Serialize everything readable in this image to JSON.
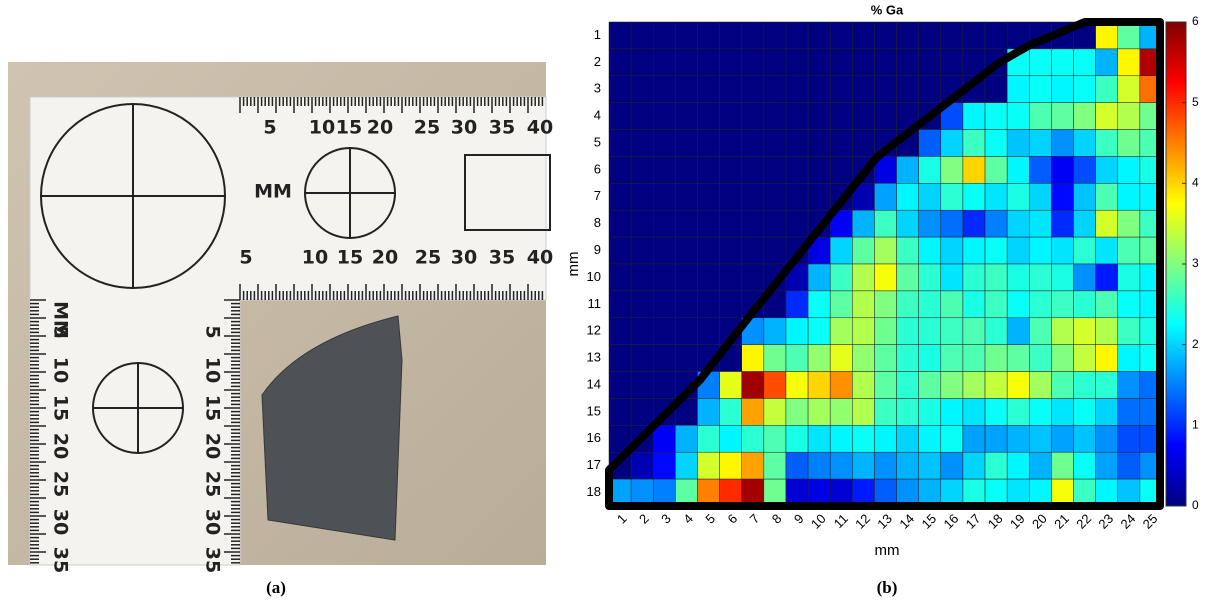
{
  "captions": [
    "(a)",
    "(b)"
  ],
  "photo": {
    "ruler_mark": "MM",
    "ruler_top_labels": [
      "5",
      "10",
      "15",
      "20",
      "25",
      "30",
      "35",
      "40"
    ],
    "ruler_left_labels": [
      "5",
      "10",
      "15",
      "20",
      "25",
      "30",
      "35"
    ]
  },
  "chart_data": {
    "type": "heatmap",
    "title": "% Ga",
    "x_label": "mm",
    "y_label": "mm",
    "x": [
      1,
      2,
      3,
      4,
      5,
      6,
      7,
      8,
      9,
      10,
      11,
      12,
      13,
      14,
      15,
      16,
      17,
      18,
      19,
      20,
      21,
      22,
      23,
      24,
      25
    ],
    "y": [
      1,
      2,
      3,
      4,
      5,
      6,
      7,
      8,
      9,
      10,
      11,
      12,
      13,
      14,
      15,
      16,
      17,
      18
    ],
    "colormap": "jet",
    "clim": [
      0,
      6
    ],
    "cticks": [
      0,
      1,
      2,
      3,
      4,
      5,
      6
    ],
    "values": [
      [
        0,
        0,
        0,
        0,
        0,
        0,
        0,
        0,
        0,
        0,
        0,
        0,
        0,
        0,
        0,
        0,
        0,
        0,
        0,
        0,
        0,
        0,
        3.8,
        2.8,
        1.8
      ],
      [
        0,
        0,
        0,
        0,
        0,
        0,
        0,
        0,
        0,
        0,
        0,
        0,
        0,
        0,
        0,
        0,
        0,
        0,
        2.3,
        2.3,
        2.3,
        2.3,
        1.8,
        3.8,
        5.7
      ],
      [
        0,
        0,
        0,
        0,
        0,
        0,
        0,
        0,
        0,
        0,
        0,
        0,
        0,
        0,
        0,
        0,
        0,
        0,
        2.2,
        2.3,
        2.2,
        2.3,
        2.6,
        3.5,
        4.6
      ],
      [
        0,
        0,
        0,
        0,
        0,
        0,
        0,
        0,
        0,
        0,
        0,
        0,
        0,
        0,
        0,
        1.2,
        2.2,
        2.3,
        2.3,
        2.7,
        2.8,
        3.0,
        3.5,
        3.3,
        2.9
      ],
      [
        0,
        0,
        0,
        0,
        0,
        0,
        0,
        0,
        0,
        0,
        0,
        0,
        0,
        0,
        1.3,
        2.0,
        2.6,
        2.3,
        1.9,
        2.0,
        1.6,
        2.0,
        2.6,
        2.9,
        2.7
      ],
      [
        0,
        0,
        0,
        0,
        0,
        0,
        0,
        0,
        0,
        0,
        0,
        0,
        0.6,
        1.8,
        2.4,
        3.0,
        4.0,
        2.8,
        2.2,
        1.3,
        0.7,
        1.2,
        2.0,
        2.2,
        2.4
      ],
      [
        0,
        0,
        0,
        0,
        0,
        0,
        0,
        0,
        0,
        0,
        0,
        0.3,
        1.7,
        2.2,
        2.0,
        2.5,
        2.3,
        2.1,
        2.4,
        2.0,
        0.8,
        1.9,
        2.7,
        2.2,
        2.2
      ],
      [
        0,
        0,
        0,
        0,
        0,
        0,
        0,
        0,
        0,
        0,
        0.7,
        1.8,
        2.6,
        2.0,
        1.6,
        1.4,
        1.0,
        1.5,
        2.0,
        2.1,
        1.0,
        2.0,
        3.5,
        3.0,
        2.6
      ],
      [
        0,
        0,
        0,
        0,
        0,
        0,
        0,
        0,
        0,
        0.6,
        2.0,
        2.8,
        3.2,
        2.6,
        2.2,
        2.0,
        2.2,
        2.3,
        2.0,
        2.2,
        2.1,
        2.5,
        2.1,
        2.7,
        2.8
      ],
      [
        0,
        0,
        0,
        0,
        0,
        0,
        0,
        0,
        0.3,
        1.8,
        2.6,
        3.3,
        3.7,
        2.8,
        2.5,
        2.1,
        2.5,
        2.6,
        2.4,
        2.5,
        2.4,
        1.6,
        0.9,
        2.4,
        2.2
      ],
      [
        0,
        0,
        0,
        0,
        0,
        0,
        0,
        0,
        1.0,
        2.3,
        2.8,
        3.3,
        3.0,
        2.6,
        2.5,
        2.7,
        2.4,
        2.6,
        2.3,
        2.5,
        2.6,
        2.5,
        2.7,
        2.3,
        2.2
      ],
      [
        0,
        0,
        0,
        0,
        0,
        0,
        1.6,
        1.8,
        2.2,
        2.3,
        3.2,
        3.3,
        2.9,
        2.5,
        2.5,
        2.6,
        2.7,
        2.5,
        1.8,
        2.7,
        3.3,
        3.5,
        3.3,
        2.6,
        2.4
      ],
      [
        0,
        0,
        0,
        0,
        0,
        0,
        3.8,
        2.9,
        2.7,
        3.1,
        3.6,
        3.1,
        2.8,
        2.5,
        2.4,
        2.7,
        2.7,
        2.9,
        2.8,
        2.6,
        3.0,
        3.4,
        3.8,
        2.2,
        2.3
      ],
      [
        0,
        0,
        0,
        0,
        1.5,
        3.6,
        5.8,
        4.8,
        3.7,
        4.0,
        4.4,
        3.3,
        2.8,
        2.5,
        2.8,
        3.0,
        3.2,
        3.4,
        3.7,
        3.2,
        2.7,
        2.5,
        2.5,
        1.6,
        1.4
      ],
      [
        0,
        0,
        0,
        0,
        1.8,
        2.5,
        4.3,
        3.4,
        3.0,
        3.2,
        3.1,
        3.3,
        2.6,
        2.5,
        2.4,
        2.2,
        2.1,
        2.3,
        2.5,
        2.3,
        2.1,
        2.3,
        2.0,
        1.4,
        1.4
      ],
      [
        0,
        0,
        0.7,
        1.8,
        2.5,
        2.2,
        2.5,
        2.7,
        2.4,
        2.1,
        2.2,
        2.3,
        2.2,
        2.0,
        2.2,
        2.3,
        1.7,
        1.7,
        1.8,
        1.9,
        1.7,
        1.9,
        1.6,
        1.2,
        1.2
      ],
      [
        0,
        0.3,
        0.8,
        2.0,
        3.5,
        3.8,
        4.3,
        2.8,
        1.3,
        1.5,
        1.6,
        1.8,
        1.6,
        1.8,
        1.9,
        1.6,
        2.0,
        2.5,
        2.2,
        1.8,
        2.9,
        2.3,
        1.7,
        1.3,
        1.6
      ],
      [
        1.7,
        1.6,
        1.5,
        2.8,
        4.5,
        5.0,
        5.8,
        2.9,
        0.5,
        0.6,
        0.5,
        0.9,
        1.3,
        1.6,
        1.8,
        2.0,
        2.4,
        2.3,
        2.1,
        2.2,
        3.7,
        2.6,
        2.2,
        1.9,
        2.3
      ]
    ]
  }
}
